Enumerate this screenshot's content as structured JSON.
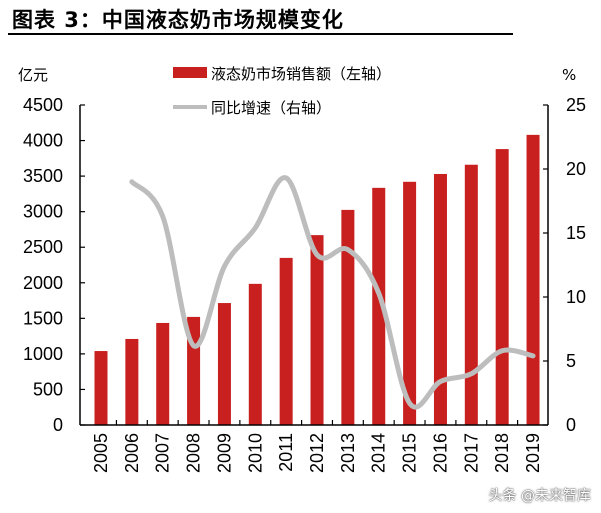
{
  "title": "图表 3：中国液态奶市场规模变化",
  "watermark": "头条 @未来智库",
  "chart_data": {
    "type": "bar+line",
    "categories": [
      "2005",
      "2006",
      "2007",
      "2008",
      "2009",
      "2010",
      "2011",
      "2012",
      "2013",
      "2014",
      "2015",
      "2016",
      "2017",
      "2018",
      "2019"
    ],
    "series": [
      {
        "name": "液态奶市场销售额（左轴）",
        "type": "bar",
        "axis": "left",
        "color": "#c8201f",
        "values": [
          1040,
          1210,
          1435,
          1520,
          1715,
          1985,
          2350,
          2670,
          3025,
          3335,
          3420,
          3530,
          3660,
          3880,
          4080
        ]
      },
      {
        "name": "同比增速（右轴）",
        "type": "line",
        "axis": "right",
        "color": "#bdbdbd",
        "values": [
          null,
          19.0,
          16.3,
          6.2,
          12.4,
          15.4,
          19.3,
          13.3,
          13.7,
          10.3,
          1.7,
          3.4,
          4.0,
          5.8,
          5.4
        ]
      }
    ],
    "left_axis": {
      "label": "亿元",
      "range": [
        0,
        4500
      ],
      "ticks": [
        "0",
        "500",
        "1000",
        "1500",
        "2000",
        "2500",
        "3000",
        "3500",
        "4000",
        "4500"
      ]
    },
    "right_axis": {
      "label": "%",
      "range": [
        0,
        25
      ],
      "ticks": [
        "0",
        "5",
        "10",
        "15",
        "20",
        "25"
      ]
    },
    "legend_position": "top-center",
    "grid": false
  }
}
